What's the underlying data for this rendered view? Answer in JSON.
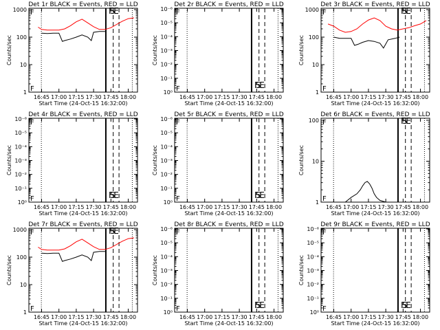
{
  "chart_data": [
    {
      "type": "line",
      "title": "Det 1r BLACK = Events, RED = LLD",
      "xlabel": "Start Time (24-Oct-15 16:32:00)",
      "ylabel": "Counts/sec",
      "x_tick_labels": [
        "16:45",
        "17:00",
        "17:15",
        "17:30",
        "17:45",
        "18:00"
      ],
      "y_tick_labels": [
        "1",
        "10",
        "100",
        "1000"
      ],
      "markers": [
        "F",
        "S",
        "E"
      ],
      "series": [
        {
          "color": "#ff0000",
          "x": [
            "16:42",
            "16:45",
            "16:50",
            "17:00",
            "17:05",
            "17:10",
            "17:15",
            "17:20",
            "17:25",
            "17:30",
            "17:35",
            "17:40",
            "17:45",
            "17:50",
            "17:55",
            "18:00",
            "18:05"
          ],
          "y": [
            230,
            190,
            180,
            180,
            200,
            260,
            360,
            450,
            330,
            240,
            190,
            190,
            220,
            290,
            380,
            470,
            500
          ]
        },
        {
          "color": "#000000",
          "x": [
            "16:45",
            "16:50",
            "16:55",
            "17:00",
            "17:03",
            "17:05",
            "17:10",
            "17:15",
            "17:20",
            "17:25",
            "17:28",
            "17:30",
            "17:35",
            "17:40"
          ],
          "y": [
            140,
            135,
            140,
            140,
            70,
            75,
            85,
            100,
            120,
            100,
            75,
            150,
            160,
            160
          ]
        }
      ]
    },
    {
      "type": "line",
      "title": "Det 2r BLACK = Events, RED = LLD",
      "xlabel": "Start Time (24-Oct-15 16:32:00)",
      "ylabel": "Counts/sec",
      "x_tick_labels": [
        "16:45",
        "17:00",
        "17:15",
        "17:30",
        "17:45",
        "18:00"
      ],
      "y_tick_labels": [
        "10⁰",
        "10⁻¹",
        "10⁻²",
        "10⁻³",
        "10⁻⁴",
        "10⁻⁵",
        "10⁻⁶"
      ],
      "markers": [
        "F",
        "S",
        "E"
      ],
      "series": []
    },
    {
      "type": "line",
      "title": "Det 3r BLACK = Events, RED = LLD",
      "xlabel": "Start Time (24-Oct-15 16:32:00)",
      "ylabel": "Counts/sec",
      "x_tick_labels": [
        "16:45",
        "17:00",
        "17:15",
        "17:30",
        "17:45",
        "18:00"
      ],
      "y_tick_labels": [
        "1",
        "10",
        "100",
        "1000"
      ],
      "markers": [
        "F",
        "S",
        "E"
      ],
      "series": [
        {
          "color": "#ff0000",
          "x": [
            "16:40",
            "16:45",
            "16:50",
            "16:55",
            "17:00",
            "17:05",
            "17:10",
            "17:15",
            "17:20",
            "17:25",
            "17:30",
            "17:35",
            "17:40",
            "17:45",
            "17:50",
            "17:55",
            "18:00",
            "18:05"
          ],
          "y": [
            300,
            250,
            180,
            150,
            160,
            200,
            300,
            420,
            500,
            400,
            250,
            200,
            180,
            200,
            220,
            260,
            300,
            400
          ]
        },
        {
          "color": "#000000",
          "x": [
            "16:45",
            "16:50",
            "16:55",
            "17:00",
            "17:03",
            "17:06",
            "17:10",
            "17:15",
            "17:20",
            "17:25",
            "17:28",
            "17:32",
            "17:38",
            "17:42"
          ],
          "y": [
            100,
            90,
            90,
            90,
            50,
            55,
            65,
            75,
            70,
            60,
            40,
            80,
            90,
            100
          ]
        }
      ]
    },
    {
      "type": "line",
      "title": "Det 4r BLACK = Events, RED = LLD",
      "xlabel": "Start Time (24-Oct-15 16:32:00)",
      "ylabel": "Counts/sec",
      "x_tick_labels": [
        "16:45",
        "17:00",
        "17:15",
        "17:30",
        "17:45",
        "18:00"
      ],
      "y_tick_labels": [
        "10⁰",
        "10⁻¹",
        "10⁻²",
        "10⁻³",
        "10⁻⁴",
        "10⁻⁵",
        "10⁻⁶"
      ],
      "markers": [
        "F",
        "S",
        "E"
      ],
      "series": []
    },
    {
      "type": "line",
      "title": "Det 5r BLACK = Events, RED = LLD",
      "xlabel": "Start Time (24-Oct-15 16:32:00)",
      "ylabel": "Counts/sec",
      "x_tick_labels": [
        "16:45",
        "17:00",
        "17:15",
        "17:30",
        "17:45",
        "18:00"
      ],
      "y_tick_labels": [
        "10⁰",
        "10⁻¹",
        "10⁻²",
        "10⁻³",
        "10⁻⁴",
        "10⁻⁵",
        "10⁻⁶"
      ],
      "markers": [
        "F",
        "S",
        "E"
      ],
      "series": []
    },
    {
      "type": "line",
      "title": "Det 6r BLACK = Events, RED = LLD",
      "xlabel": "Start Time (24-Oct-15 16:32:00)",
      "ylabel": "Counts/sec",
      "x_tick_labels": [
        "16:45",
        "17:00",
        "17:15",
        "17:30",
        "17:45",
        "18:00"
      ],
      "y_tick_labels": [
        "1",
        "10",
        "100"
      ],
      "markers": [
        "F",
        "S",
        "E"
      ],
      "series": [
        {
          "color": "#000000",
          "x": [
            "16:55",
            "17:00",
            "17:05",
            "17:08",
            "17:10",
            "17:12",
            "17:14",
            "17:16",
            "17:18",
            "17:20",
            "17:22",
            "17:25",
            "17:30"
          ],
          "y": [
            1,
            1.3,
            1.6,
            2,
            2.5,
            3,
            3.2,
            2.8,
            2.2,
            1.6,
            1.3,
            1.1,
            1
          ]
        }
      ]
    },
    {
      "type": "line",
      "title": "Det 7r BLACK = Events, RED = LLD",
      "xlabel": "Start Time (24-Oct-15 16:32:00)",
      "ylabel": "Counts/sec",
      "x_tick_labels": [
        "16:45",
        "17:00",
        "17:15",
        "17:30",
        "17:45",
        "18:00"
      ],
      "y_tick_labels": [
        "1",
        "10",
        "100",
        "1000"
      ],
      "markers": [
        "F",
        "S",
        "E"
      ],
      "series": [
        {
          "color": "#ff0000",
          "x": [
            "16:42",
            "16:45",
            "16:50",
            "17:00",
            "17:05",
            "17:10",
            "17:15",
            "17:20",
            "17:25",
            "17:30",
            "17:35",
            "17:40",
            "17:45",
            "17:50",
            "17:55",
            "18:00",
            "18:05"
          ],
          "y": [
            230,
            190,
            180,
            180,
            200,
            260,
            360,
            450,
            330,
            240,
            190,
            190,
            220,
            290,
            380,
            470,
            500
          ]
        },
        {
          "color": "#000000",
          "x": [
            "16:45",
            "16:50",
            "16:55",
            "17:00",
            "17:03",
            "17:05",
            "17:10",
            "17:15",
            "17:20",
            "17:25",
            "17:28",
            "17:30",
            "17:35",
            "17:40"
          ],
          "y": [
            140,
            135,
            140,
            140,
            70,
            75,
            85,
            100,
            120,
            100,
            75,
            150,
            160,
            160
          ]
        }
      ]
    },
    {
      "type": "line",
      "title": "Det 8r BLACK = Events, RED = LLD",
      "xlabel": "Start Time (24-Oct-15 16:32:00)",
      "ylabel": "Counts/sec",
      "x_tick_labels": [
        "16:45",
        "17:00",
        "17:15",
        "17:30",
        "17:45",
        "18:00"
      ],
      "y_tick_labels": [
        "10⁰",
        "10⁻¹",
        "10⁻²",
        "10⁻³",
        "10⁻⁴",
        "10⁻⁵",
        "10⁻⁶"
      ],
      "markers": [
        "F",
        "S",
        "E"
      ],
      "series": []
    },
    {
      "type": "line",
      "title": "Det 9r BLACK = Events, RED = LLD",
      "xlabel": "Start Time (24-Oct-15 16:32:00)",
      "ylabel": "Counts/sec",
      "x_tick_labels": [
        "16:45",
        "17:00",
        "17:15",
        "17:30",
        "17:45",
        "18:00"
      ],
      "y_tick_labels": [
        "10⁰",
        "10⁻¹",
        "10⁻²",
        "10⁻³",
        "10⁻⁴",
        "10⁻⁵",
        "10⁻⁶"
      ],
      "markers": [
        "F",
        "S",
        "E"
      ],
      "series": []
    }
  ]
}
